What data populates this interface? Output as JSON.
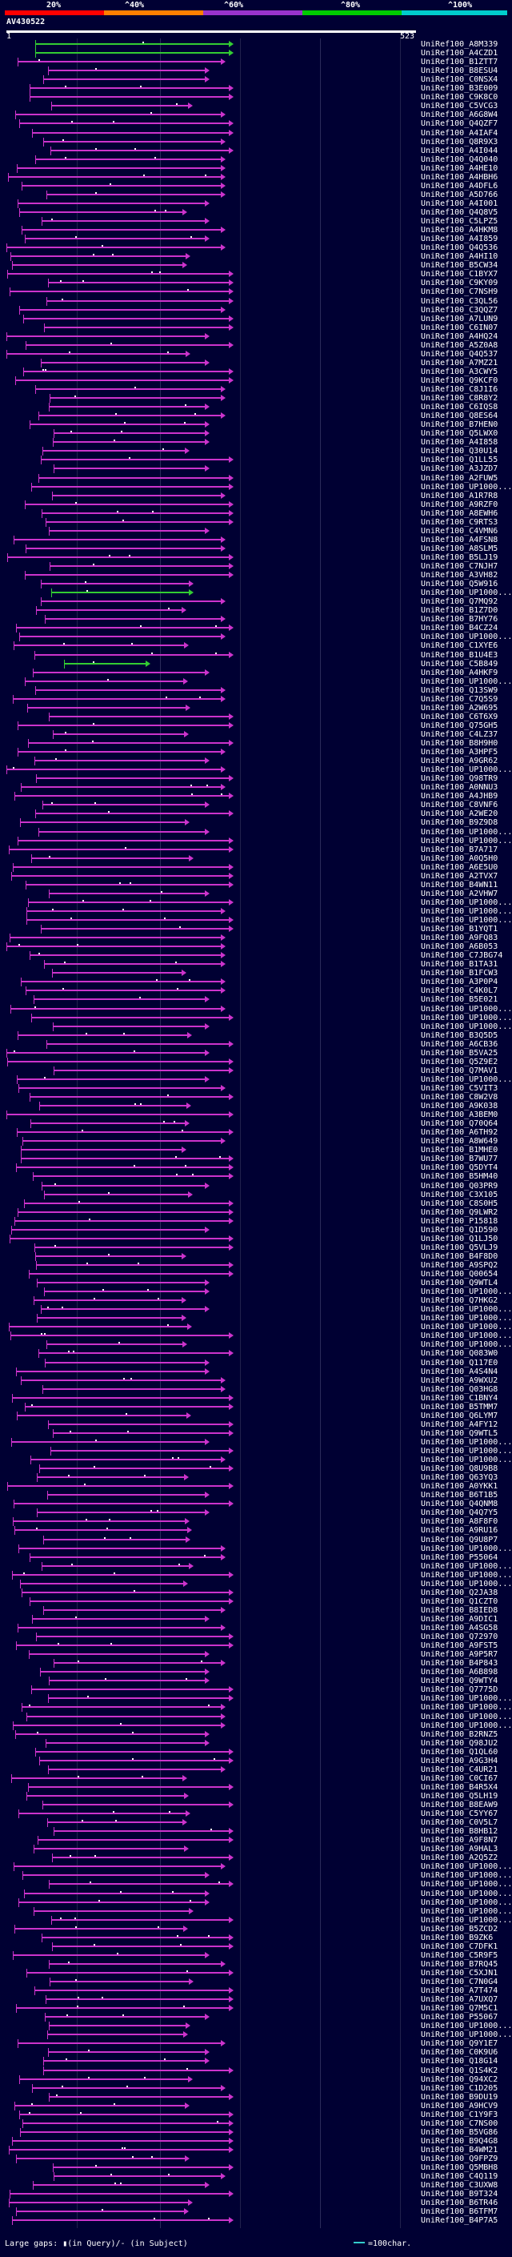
{
  "header": {
    "scale_labels": [
      "20%",
      "^40%",
      "^60%",
      "^80%",
      "^100%"
    ],
    "scale_colors": [
      "#ff0000",
      "#ff7f00",
      "#9933cc",
      "#00cc00",
      "#00cccc"
    ],
    "query_id": "AV430522",
    "query_start": "1",
    "query_end": "523"
  },
  "colors": {
    "hit": "#cc33cc",
    "hit_green": "#33cc33",
    "background": "#000033"
  },
  "hits": [
    "UniRef100_A8M339",
    "UniRef100_A4CZD1",
    "UniRef100_B1ZTT7",
    "UniRef100_B8ESU4",
    "UniRef100_C0NSX4",
    "UniRef100_B3E009",
    "UniRef100_C9K8C0",
    "UniRef100_C5VCG3",
    "UniRef100_A6G8W4",
    "UniRef100_Q4QZF7",
    "UniRef100_A4IAF4",
    "UniRef100_Q8R9X3",
    "UniRef100_A4I044",
    "UniRef100_Q4Q040",
    "UniRef100_A4HE10",
    "UniRef100_A4HBH6",
    "UniRef100_A4DFL6",
    "UniRef100_A5D766",
    "UniRef100_A4I001",
    "UniRef100_Q4Q8V5",
    "UniRef100_C5LPZ5",
    "UniRef100_A4HKM8",
    "UniRef100_A4I859",
    "UniRef100_Q4Q536",
    "UniRef100_A4HI10",
    "UniRef100_B5CW34",
    "UniRef100_C1BYX7",
    "UniRef100_C9KY09",
    "UniRef100_C7NSH9",
    "UniRef100_C3QL56",
    "UniRef100_C3QQZ7",
    "UniRef100_A7LUN9",
    "UniRef100_C6IN07",
    "UniRef100_A4HQ24",
    "UniRef100_A5Z0A8",
    "UniRef100_Q4Q537",
    "UniRef100_A7MZ21",
    "UniRef100_A3CWY5",
    "UniRef100_Q9KCF0",
    "UniRef100_C8J1I6",
    "UniRef100_C8R8Y2",
    "UniRef100_C6IQS8",
    "UniRef100_Q8ES64",
    "UniRef100_B7HEN0",
    "UniRef100_Q5LWX0",
    "UniRef100_A4I858",
    "UniRef100_Q30U14",
    "UniRef100_Q1LL55",
    "UniRef100_A3JZD7",
    "UniRef100_A2FUW5",
    "UniRef100_UP1000...",
    "UniRef100_A1R7R8",
    "UniRef100_A9RZF0",
    "UniRef100_A8EWH6",
    "UniRef100_C9RTS3",
    "UniRef100_C4VMN6",
    "UniRef100_A4FSN8",
    "UniRef100_A8SLM5",
    "UniRef100_B5LJ19",
    "UniRef100_C7NJH7",
    "UniRef100_A3VH82",
    "UniRef100_Q5W916",
    "UniRef100_UP1000...",
    "UniRef100_Q7MQ92",
    "UniRef100_B1Z7D0",
    "UniRef100_B7HY76",
    "UniRef100_B4CZ24",
    "UniRef100_UP1000...",
    "UniRef100_C1XYE6",
    "UniRef100_B1U4E3",
    "UniRef100_C5B849",
    "UniRef100_A4HKF9",
    "UniRef100_UP1000...",
    "UniRef100_Q13SW9",
    "UniRef100_C7Q5S9",
    "UniRef100_A2W695",
    "UniRef100_C6T6X9",
    "UniRef100_Q75GH5",
    "UniRef100_C4LZ37",
    "UniRef100_B8H9H0",
    "UniRef100_A3HPF5",
    "UniRef100_A9GR62",
    "UniRef100_UP1000...",
    "UniRef100_Q98TR9",
    "UniRef100_A0NNU3",
    "UniRef100_A4JHB9",
    "UniRef100_C8VNF6",
    "UniRef100_A2WE20",
    "UniRef100_B9Z9D8",
    "UniRef100_UP1000...",
    "UniRef100_UP1000...",
    "UniRef100_B7A717",
    "UniRef100_A0Q5H0",
    "UniRef100_A6E5U0",
    "UniRef100_A2TVX7",
    "UniRef100_B4WN11",
    "UniRef100_A2VHW7",
    "UniRef100_UP1000...",
    "UniRef100_UP1000...",
    "UniRef100_UP1000...",
    "UniRef100_B1YQT1",
    "UniRef100_A9FQ83",
    "UniRef100_A6B053",
    "UniRef100_C7JBG74",
    "UniRef100_B1TA31",
    "UniRef100_B1FCW3",
    "UniRef100_A3P0P4",
    "UniRef100_C4K0L7",
    "UniRef100_B5E021",
    "UniRef100_UP1000...",
    "UniRef100_UP1000...",
    "UniRef100_UP1000...",
    "UniRef100_B3Q5D5",
    "UniRef100_A6CB36",
    "UniRef100_B5VA25",
    "UniRef100_Q5Z9E2",
    "UniRef100_Q7MAV1",
    "UniRef100_UP1000...",
    "UniRef100_C5VIT3",
    "UniRef100_C8W2V8",
    "UniRef100_A9K038",
    "UniRef100_A3BEM0",
    "UniRef100_Q70Q64",
    "UniRef100_A6TH92",
    "UniRef100_A8W649",
    "UniRef100_B1MHE0",
    "UniRef100_B7WU77",
    "UniRef100_Q5DYT4",
    "UniRef100_B5HM40",
    "UniRef100_Q03PR9",
    "UniRef100_C3X105",
    "UniRef100_C8S0H5",
    "UniRef100_Q9LWR2",
    "UniRef100_P15818",
    "UniRef100_Q1D590",
    "UniRef100_Q1LJ50",
    "UniRef100_Q5VLJ9",
    "UniRef100_B4F8D0",
    "UniRef100_A9SPQ2",
    "UniRef100_Q00654",
    "UniRef100_Q9WTL4",
    "UniRef100_UP1000...",
    "UniRef100_Q7HKG2",
    "UniRef100_UP1000...",
    "UniRef100_UP1000...",
    "UniRef100_UP1000...",
    "UniRef100_UP1000...",
    "UniRef100_UP1000...",
    "UniRef100_Q083W0",
    "UniRef100_Q117E0",
    "UniRef100_A4S4N4",
    "UniRef100_A9WXU2",
    "UniRef100_Q03HG8",
    "UniRef100_C1BNY4",
    "UniRef100_B5TMM7",
    "UniRef100_Q6LYM7",
    "UniRef100_A4FY12",
    "UniRef100_Q9WTL5",
    "UniRef100_UP1000...",
    "UniRef100_UP1000...",
    "UniRef100_UP1000...",
    "UniRef100_Q8U9B8",
    "UniRef100_Q63YQ3",
    "UniRef100_A0YKK1",
    "UniRef100_B6T1B5",
    "UniRef100_Q4QNM8",
    "UniRef100_Q4Q7Y5",
    "UniRef100_A8F8F0",
    "UniRef100_A9RU16",
    "UniRef100_Q9U8P7",
    "UniRef100_UP1000...",
    "UniRef100_P55064",
    "UniRef100_UP1000...",
    "UniRef100_UP1000...",
    "UniRef100_UP1000...",
    "UniRef100_Q2JA38",
    "UniRef100_Q1CZT0",
    "UniRef100_B8IED8",
    "UniRef100_A9DIC1",
    "UniRef100_A4SG58",
    "UniRef100_Q72970",
    "UniRef100_A9FST5",
    "UniRef100_A9P5R7",
    "UniRef100_B4P843",
    "UniRef100_A6B898",
    "UniRef100_Q9WTY4",
    "UniRef100_Q7775D",
    "UniRef100_UP1000...",
    "UniRef100_UP1000...",
    "UniRef100_UP1000...",
    "UniRef100_UP1000...",
    "UniRef100_B2RNZ5",
    "UniRef100_Q98JU2",
    "UniRef100_Q1QL60",
    "UniRef100_A9G3H4",
    "UniRef100_C4UR21",
    "UniRef100_C0CI67",
    "UniRef100_B4R5X4",
    "UniRef100_Q5LH19",
    "UniRef100_B8EAW9",
    "UniRef100_C5YY67",
    "UniRef100_C0V5L7",
    "UniRef100_B8HB12",
    "UniRef100_A9F8N7",
    "UniRef100_A9HAL3",
    "UniRef100_A2Q5Z2",
    "UniRef100_UP1000...",
    "UniRef100_UP1000...",
    "UniRef100_UP1000...",
    "UniRef100_UP1000...",
    "UniRef100_UP1000...",
    "UniRef100_UP1000...",
    "UniRef100_UP1000...",
    "UniRef100_B5ZCD2",
    "UniRef100_B9ZK6",
    "UniRef100_C7DFK1",
    "UniRef100_C5R9F5",
    "UniRef100_B7RQ45",
    "UniRef100_C5XJN1",
    "UniRef100_C7N0G4",
    "UniRef100_A7T474",
    "UniRef100_A7UXQ7",
    "UniRef100_Q7M5C1",
    "UniRef100_P55067",
    "UniRef100_UP1000...",
    "UniRef100_UP1000...",
    "UniRef100_Q9Y1E7",
    "UniRef100_C0K9U6",
    "UniRef100_Q18G14",
    "UniRef100_Q1S4K2",
    "UniRef100_Q94XC2",
    "UniRef100_C1D205",
    "UniRef100_B9DU19",
    "UniRef100_A9HCV9",
    "UniRef100_C1Y9F3",
    "UniRef100_C7NS00",
    "UniRef100_B5VG86",
    "UniRef100_B9Q4G8",
    "UniRef100_B4WM21",
    "UniRef100_Q9FPZ9",
    "UniRef100_Q5MBH8",
    "UniRef100_C4Q119",
    "UniRef100_C3UXW8",
    "UniRef100_B9T324",
    "UniRef100_B6TR46",
    "UniRef100_B6TFM7",
    "UniRef100_B4P7A5"
  ],
  "legend": {
    "large_gaps": "Large gaps: ▮(in Query)/- (in Subject)",
    "key_label": "=100char."
  }
}
